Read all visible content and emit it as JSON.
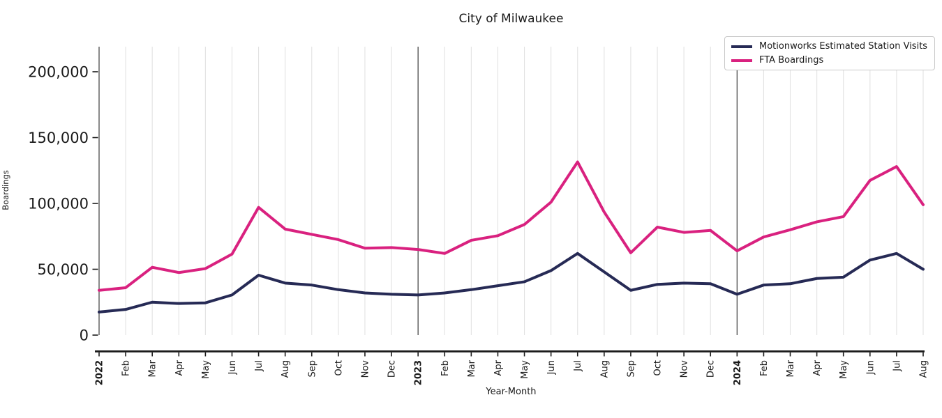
{
  "title": "City of Milwaukee",
  "axes": {
    "x_label": "Year-Month",
    "y_label": "Boardings"
  },
  "legend": {
    "items": [
      {
        "label": "Motionworks Estimated Station Visits",
        "color": "#262a55"
      },
      {
        "label": "FTA Boardings",
        "color": "#d9217f"
      }
    ]
  },
  "chart_data": {
    "type": "line",
    "title": "City of Milwaukee",
    "xlabel": "Year-Month",
    "ylabel": "Boardings",
    "ylim": [
      0,
      219000
    ],
    "grid": "vertical gridline per month, darker line at each January",
    "legend_position": "upper right",
    "categories": [
      "2022",
      "Feb",
      "Mar",
      "Apr",
      "May",
      "Jun",
      "Jul",
      "Aug",
      "Sep",
      "Oct",
      "Nov",
      "Dec",
      "2023",
      "Feb",
      "Mar",
      "Apr",
      "May",
      "Jun",
      "Jul",
      "Aug",
      "Sep",
      "Oct",
      "Nov",
      "Dec",
      "2024",
      "Feb",
      "Mar",
      "Apr",
      "May",
      "Jun",
      "Jul",
      "Aug"
    ],
    "year_separator_indices": [
      0,
      12,
      24
    ],
    "y_ticks": [
      0,
      50000,
      100000,
      150000,
      200000
    ],
    "y_tick_labels": [
      "0",
      "50,000",
      "100,000",
      "150,000",
      "200,000"
    ],
    "series": [
      {
        "name": "Motionworks Estimated Station Visits",
        "color": "#262a55",
        "values": [
          17500,
          19500,
          25000,
          24000,
          24500,
          30500,
          45500,
          39500,
          38000,
          34500,
          32000,
          31000,
          30500,
          32000,
          34500,
          37500,
          40500,
          49000,
          62000,
          48000,
          34000,
          38500,
          39500,
          39000,
          31000,
          38000,
          39000,
          43000,
          44000,
          57000,
          62000,
          50000
        ]
      },
      {
        "name": "FTA Boardings",
        "color": "#d9217f",
        "values": [
          34000,
          36000,
          51500,
          47500,
          50500,
          61500,
          97000,
          80500,
          76500,
          72500,
          66000,
          66500,
          65000,
          62000,
          72000,
          75500,
          84000,
          101000,
          131500,
          93500,
          62500,
          82000,
          78000,
          79500,
          64000,
          74500,
          80000,
          86000,
          90000,
          117500,
          128000,
          99000
        ]
      }
    ],
    "style": {
      "gridline_color": "#e2e2e2",
      "year_line_color": "#4a4a4a",
      "spine_color": "#1a1a1a",
      "tick_label_color": "#1a1a1a",
      "line_width": 4
    }
  }
}
